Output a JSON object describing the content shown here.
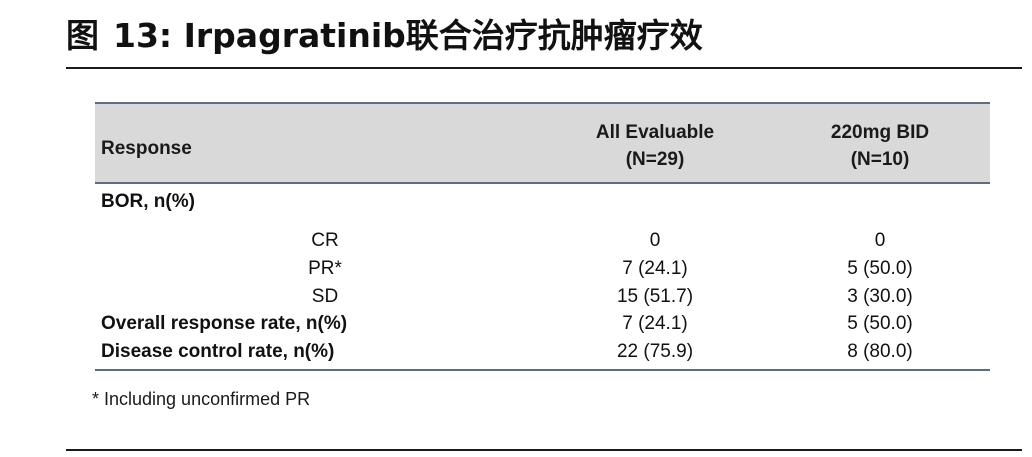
{
  "figure": {
    "label": "图",
    "number": "13:",
    "title": "Irpagratinib联合治疗抗肿瘤疗效"
  },
  "table": {
    "header": {
      "response": "Response",
      "col1_line1": "All Evaluable",
      "col1_line2": "(N=29)",
      "col2_line1": "220mg BID",
      "col2_line2": "(N=10)"
    },
    "rows": [
      {
        "label": "BOR, n(%)",
        "v1": "",
        "v2": ""
      },
      {
        "label": "CR",
        "v1": "0",
        "v2": "0"
      },
      {
        "label": "PR*",
        "v1": "7 (24.1)",
        "v2": "5 (50.0)"
      },
      {
        "label": "SD",
        "v1": "15 (51.7)",
        "v2": "3 (30.0)"
      },
      {
        "label": "Overall response rate, n(%)",
        "v1": "7 (24.1)",
        "v2": "5 (50.0)"
      },
      {
        "label": "Disease control rate, n(%)",
        "v1": "22 (75.9)",
        "v2": "8 (80.0)"
      }
    ]
  },
  "footnote": "* Including unconfirmed PR"
}
